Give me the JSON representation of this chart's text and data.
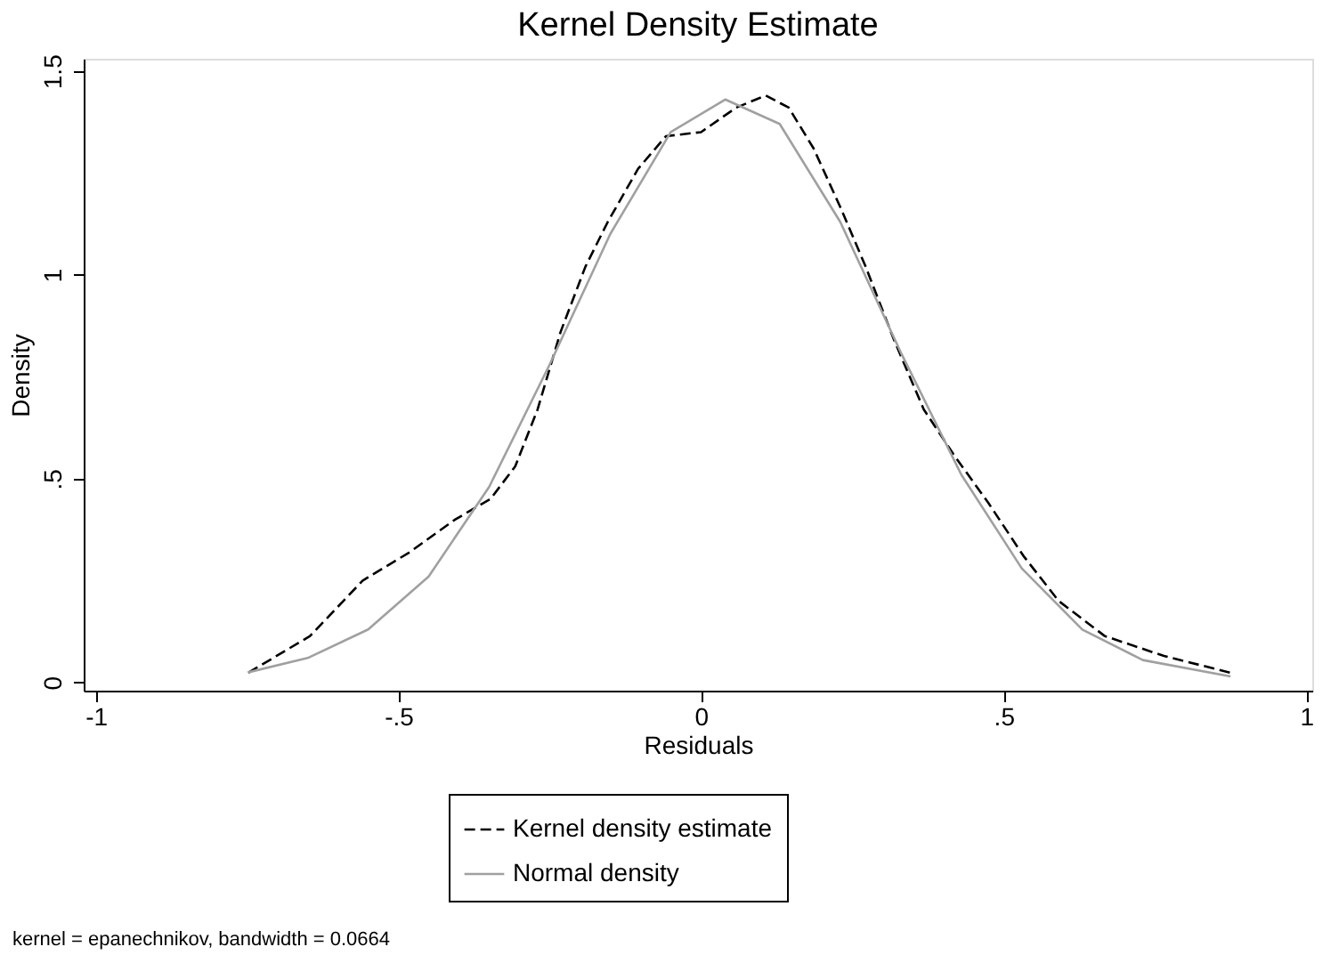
{
  "chart_data": {
    "type": "line",
    "title": "Kernel Density Estimate",
    "xlabel": "Residuals",
    "ylabel": "Density",
    "xlim": [
      -1.02,
      1.01
    ],
    "ylim": [
      -0.02,
      1.53
    ],
    "xticks": [
      -1,
      {
        "value": -0.5,
        "label": "-.5"
      },
      0,
      {
        "value": 0.5,
        "label": ".5"
      },
      1
    ],
    "yticks": [
      0,
      {
        "value": 0.5,
        "label": ".5"
      },
      1,
      1.5
    ],
    "grid": false,
    "legend": "bottom",
    "marker": "none",
    "annotations": [
      "kernel = epanechnikov, bandwidth = 0.0664"
    ],
    "series": [
      {
        "name": "Kernel density estimate",
        "color": "#000000",
        "line_style": "dashed",
        "x": [
          -0.748,
          -0.646,
          -0.559,
          -0.481,
          -0.406,
          -0.348,
          -0.307,
          -0.27,
          -0.232,
          -0.191,
          -0.154,
          -0.104,
          -0.058,
          0.0,
          0.058,
          0.107,
          0.145,
          0.186,
          0.232,
          0.272,
          0.319,
          0.368,
          0.417,
          0.475,
          0.533,
          0.591,
          0.667,
          0.765,
          0.875
        ],
        "values": [
          0.024,
          0.114,
          0.25,
          0.32,
          0.4,
          0.45,
          0.53,
          0.67,
          0.86,
          1.02,
          1.13,
          1.26,
          1.34,
          1.35,
          1.41,
          1.44,
          1.41,
          1.31,
          1.16,
          1.02,
          0.84,
          0.67,
          0.56,
          0.44,
          0.31,
          0.2,
          0.114,
          0.065,
          0.024
        ]
      },
      {
        "name": "Normal density",
        "color": "#a0a0a0",
        "line_style": "solid",
        "x": [
          -0.748,
          -0.65,
          -0.55,
          -0.45,
          -0.35,
          -0.25,
          -0.15,
          -0.05,
          0.04,
          0.13,
          0.23,
          0.33,
          0.43,
          0.53,
          0.63,
          0.73,
          0.875
        ],
        "values": [
          0.025,
          0.06,
          0.13,
          0.26,
          0.48,
          0.78,
          1.1,
          1.35,
          1.43,
          1.37,
          1.13,
          0.81,
          0.51,
          0.28,
          0.13,
          0.055,
          0.015
        ]
      }
    ]
  }
}
